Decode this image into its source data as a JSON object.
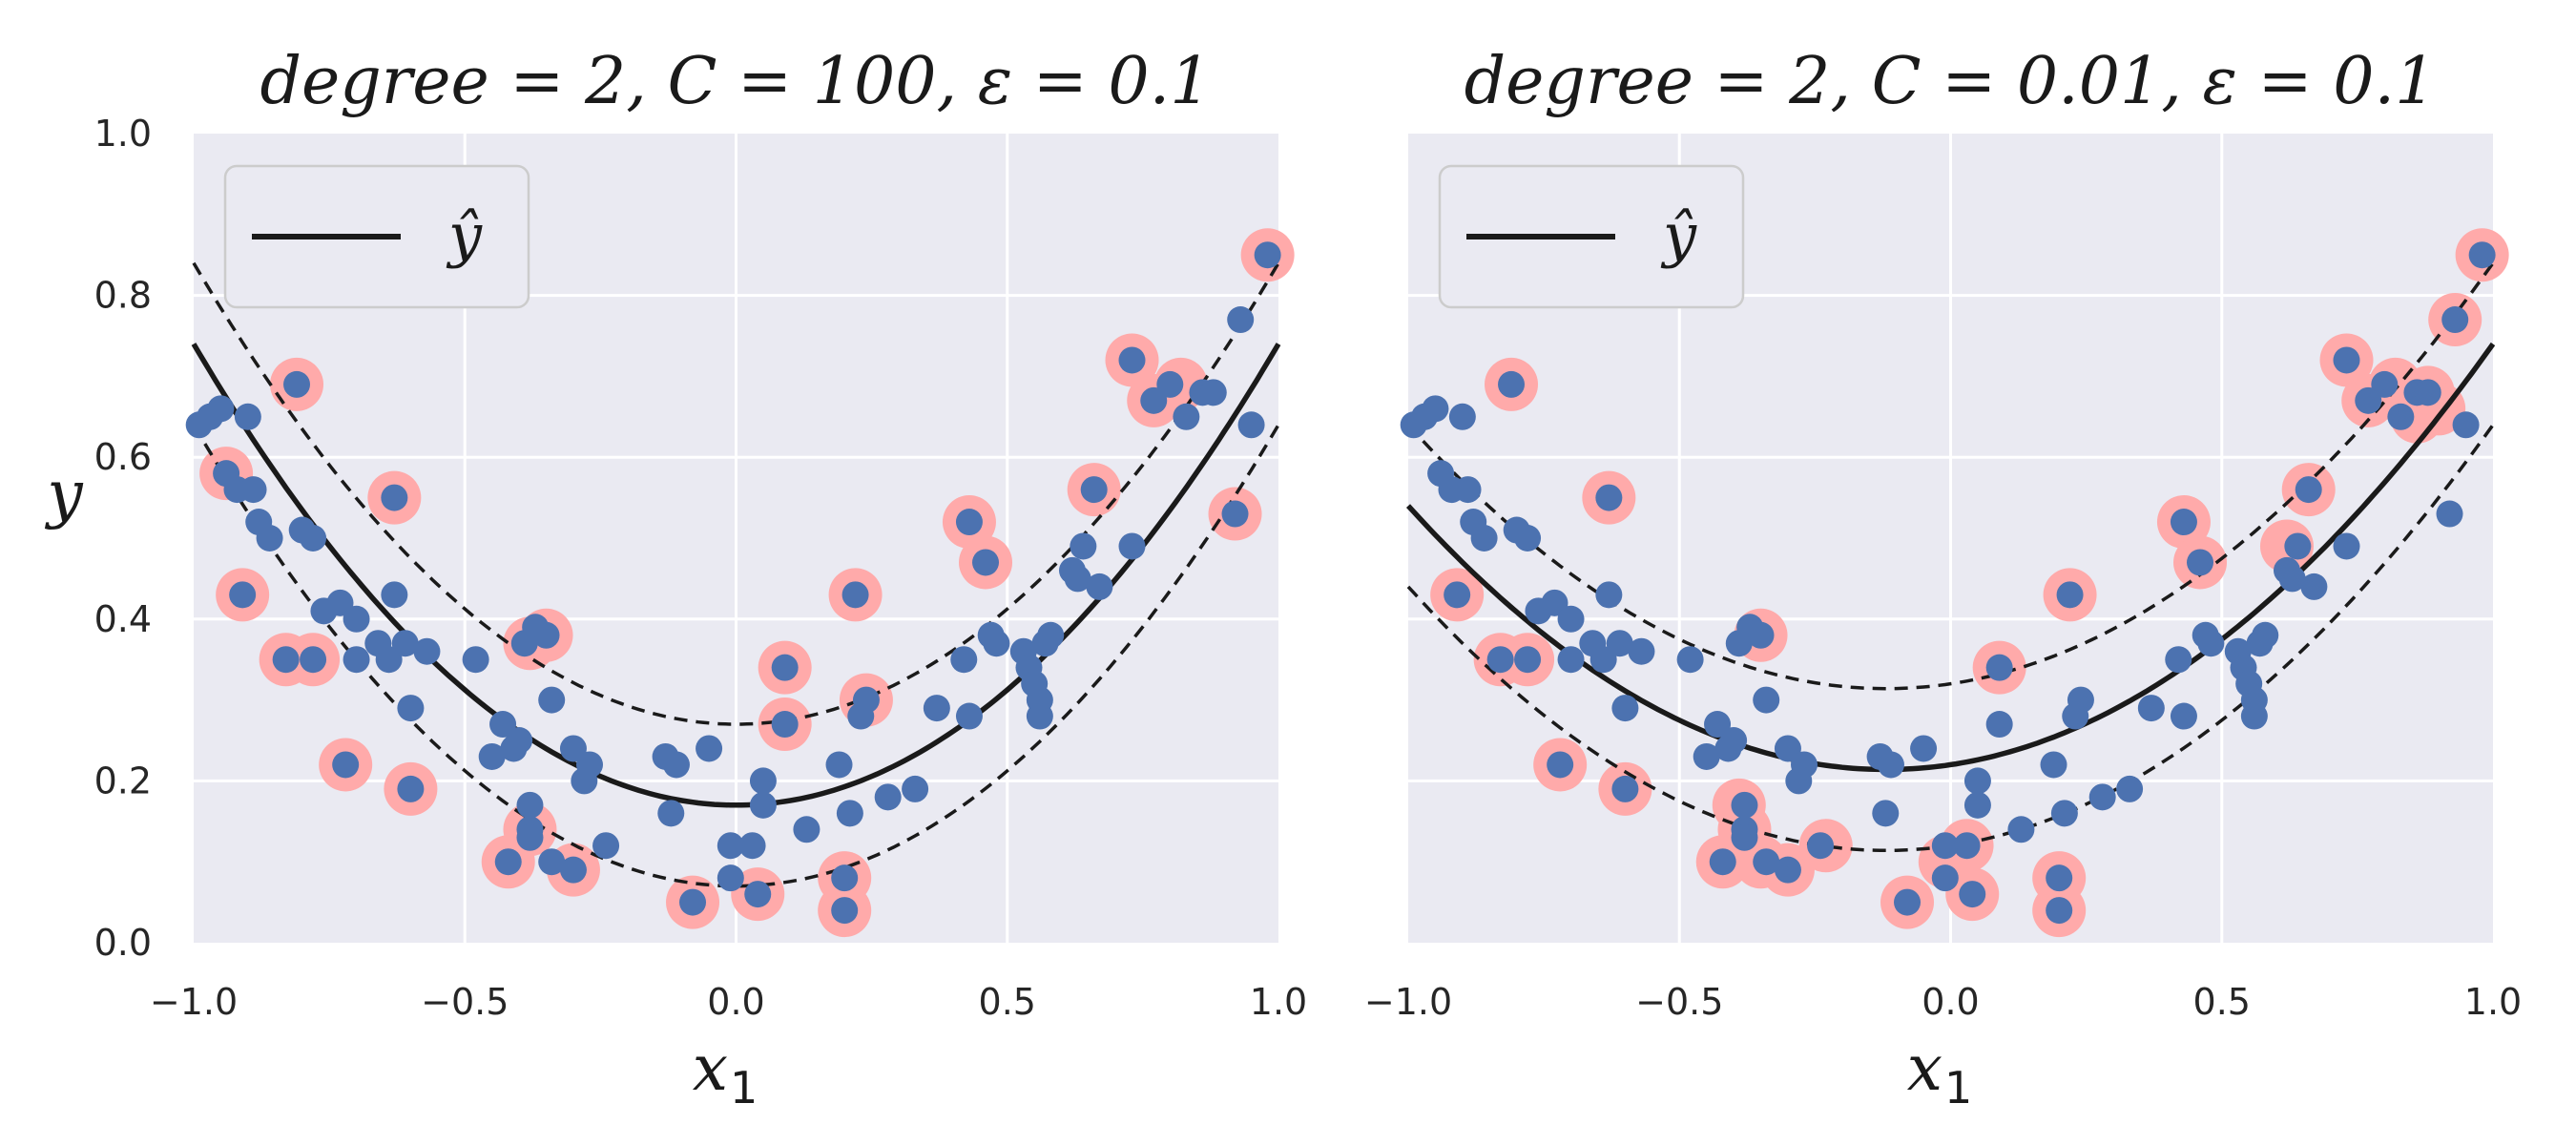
{
  "chart_data": [
    {
      "type": "scatter",
      "title": "degree = 2, C = 100, ε = 0.1",
      "xlabel": "x",
      "xlabel_subscript": "1",
      "ylabel": "y",
      "xlim": [
        -1.0,
        1.0
      ],
      "ylim": [
        0.0,
        1.0
      ],
      "xticks": [
        "−1.0",
        "−0.5",
        "0.0",
        "0.5",
        "1.0"
      ],
      "yticks": [
        "0.0",
        "0.2",
        "0.4",
        "0.6",
        "0.8",
        "1.0"
      ],
      "grid": true,
      "legend": {
        "placement": "top-left",
        "label": "ŷ"
      },
      "model": {
        "a": 0.57,
        "b": 0.0,
        "c": 0.17,
        "epsilon": 0.1
      },
      "colors": {
        "points": "#4c72b0",
        "support_vectors": "#ffaaaa",
        "line": "#1a1a1a",
        "background": "#eaeaf2",
        "grid": "#ffffff"
      },
      "points": [
        [
          -0.99,
          0.64
        ],
        [
          -0.97,
          0.65
        ],
        [
          -0.95,
          0.66
        ],
        [
          -0.94,
          0.58
        ],
        [
          -0.92,
          0.56
        ],
        [
          -0.9,
          0.65
        ],
        [
          -0.89,
          0.56
        ],
        [
          -0.88,
          0.52
        ],
        [
          -0.86,
          0.5
        ],
        [
          -0.91,
          0.43
        ],
        [
          -0.81,
          0.69
        ],
        [
          -0.83,
          0.35
        ],
        [
          -0.78,
          0.35
        ],
        [
          -0.8,
          0.51
        ],
        [
          -0.78,
          0.5
        ],
        [
          -0.76,
          0.41
        ],
        [
          -0.73,
          0.42
        ],
        [
          -0.7,
          0.4
        ],
        [
          -0.7,
          0.35
        ],
        [
          -0.72,
          0.22
        ],
        [
          -0.66,
          0.37
        ],
        [
          -0.64,
          0.35
        ],
        [
          -0.63,
          0.43
        ],
        [
          -0.63,
          0.55
        ],
        [
          -0.61,
          0.37
        ],
        [
          -0.6,
          0.29
        ],
        [
          -0.6,
          0.19
        ],
        [
          -0.57,
          0.36
        ],
        [
          -0.48,
          0.35
        ],
        [
          -0.45,
          0.23
        ],
        [
          -0.43,
          0.27
        ],
        [
          -0.41,
          0.24
        ],
        [
          -0.4,
          0.25
        ],
        [
          -0.39,
          0.37
        ],
        [
          -0.37,
          0.39
        ],
        [
          -0.35,
          0.38
        ],
        [
          -0.34,
          0.3
        ],
        [
          -0.38,
          0.17
        ],
        [
          -0.38,
          0.14
        ],
        [
          -0.42,
          0.1
        ],
        [
          -0.38,
          0.13
        ],
        [
          -0.34,
          0.1
        ],
        [
          -0.3,
          0.09
        ],
        [
          -0.3,
          0.24
        ],
        [
          -0.28,
          0.2
        ],
        [
          -0.27,
          0.22
        ],
        [
          -0.24,
          0.12
        ],
        [
          -0.13,
          0.23
        ],
        [
          -0.12,
          0.16
        ],
        [
          -0.11,
          0.22
        ],
        [
          -0.08,
          0.05
        ],
        [
          -0.05,
          0.24
        ],
        [
          -0.01,
          0.12
        ],
        [
          -0.01,
          0.08
        ],
        [
          0.03,
          0.12
        ],
        [
          0.05,
          0.2
        ],
        [
          0.05,
          0.17
        ],
        [
          0.04,
          0.06
        ],
        [
          0.09,
          0.34
        ],
        [
          0.09,
          0.27
        ],
        [
          0.13,
          0.14
        ],
        [
          0.19,
          0.22
        ],
        [
          0.2,
          0.08
        ],
        [
          0.2,
          0.04
        ],
        [
          0.21,
          0.16
        ],
        [
          0.22,
          0.43
        ],
        [
          0.23,
          0.28
        ],
        [
          0.24,
          0.3
        ],
        [
          0.28,
          0.18
        ],
        [
          0.33,
          0.19
        ],
        [
          0.37,
          0.29
        ],
        [
          0.42,
          0.35
        ],
        [
          0.43,
          0.52
        ],
        [
          0.43,
          0.28
        ],
        [
          0.46,
          0.47
        ],
        [
          0.47,
          0.38
        ],
        [
          0.48,
          0.37
        ],
        [
          0.53,
          0.36
        ],
        [
          0.54,
          0.34
        ],
        [
          0.55,
          0.32
        ],
        [
          0.56,
          0.3
        ],
        [
          0.56,
          0.28
        ],
        [
          0.57,
          0.37
        ],
        [
          0.58,
          0.38
        ],
        [
          0.62,
          0.46
        ],
        [
          0.63,
          0.45
        ],
        [
          0.64,
          0.49
        ],
        [
          0.66,
          0.56
        ],
        [
          0.67,
          0.44
        ],
        [
          0.73,
          0.49
        ],
        [
          0.73,
          0.72
        ],
        [
          0.77,
          0.67
        ],
        [
          0.8,
          0.69
        ],
        [
          0.83,
          0.65
        ],
        [
          0.86,
          0.68
        ],
        [
          0.88,
          0.68
        ],
        [
          0.92,
          0.53
        ],
        [
          0.93,
          0.77
        ],
        [
          0.95,
          0.64
        ],
        [
          0.98,
          0.85
        ]
      ],
      "support_vectors": [
        [
          -0.94,
          0.58
        ],
        [
          -0.91,
          0.43
        ],
        [
          -0.81,
          0.69
        ],
        [
          -0.83,
          0.35
        ],
        [
          -0.78,
          0.35
        ],
        [
          -0.72,
          0.22
        ],
        [
          -0.63,
          0.55
        ],
        [
          -0.6,
          0.19
        ],
        [
          -0.38,
          0.37
        ],
        [
          -0.35,
          0.38
        ],
        [
          -0.38,
          0.14
        ],
        [
          -0.42,
          0.1
        ],
        [
          -0.3,
          0.09
        ],
        [
          -0.08,
          0.05
        ],
        [
          0.04,
          0.06
        ],
        [
          0.09,
          0.34
        ],
        [
          0.09,
          0.27
        ],
        [
          0.2,
          0.08
        ],
        [
          0.2,
          0.04
        ],
        [
          0.22,
          0.43
        ],
        [
          0.24,
          0.3
        ],
        [
          0.43,
          0.52
        ],
        [
          0.46,
          0.47
        ],
        [
          0.66,
          0.56
        ],
        [
          0.73,
          0.72
        ],
        [
          0.77,
          0.67
        ],
        [
          0.82,
          0.69
        ],
        [
          0.92,
          0.53
        ],
        [
          0.98,
          0.85
        ]
      ]
    },
    {
      "type": "scatter",
      "title": "degree = 2, C = 0.01, ε = 0.1",
      "xlabel": "x",
      "xlabel_subscript": "1",
      "xlim": [
        -1.0,
        1.0
      ],
      "ylim": [
        0.0,
        1.0
      ],
      "xticks": [
        "−1.0",
        "−0.5",
        "0.0",
        "0.5",
        "1.0"
      ],
      "grid": true,
      "legend": {
        "placement": "top-left",
        "label": "ŷ"
      },
      "model": {
        "a": 0.42,
        "b": 0.1,
        "c": 0.22,
        "epsilon": 0.1
      },
      "colors": {
        "points": "#4c72b0",
        "support_vectors": "#ffaaaa",
        "line": "#1a1a1a",
        "background": "#eaeaf2",
        "grid": "#ffffff"
      },
      "points": [
        [
          -0.99,
          0.64
        ],
        [
          -0.97,
          0.65
        ],
        [
          -0.95,
          0.66
        ],
        [
          -0.94,
          0.58
        ],
        [
          -0.92,
          0.56
        ],
        [
          -0.9,
          0.65
        ],
        [
          -0.89,
          0.56
        ],
        [
          -0.88,
          0.52
        ],
        [
          -0.86,
          0.5
        ],
        [
          -0.91,
          0.43
        ],
        [
          -0.81,
          0.69
        ],
        [
          -0.83,
          0.35
        ],
        [
          -0.78,
          0.35
        ],
        [
          -0.8,
          0.51
        ],
        [
          -0.78,
          0.5
        ],
        [
          -0.76,
          0.41
        ],
        [
          -0.73,
          0.42
        ],
        [
          -0.7,
          0.4
        ],
        [
          -0.7,
          0.35
        ],
        [
          -0.72,
          0.22
        ],
        [
          -0.66,
          0.37
        ],
        [
          -0.64,
          0.35
        ],
        [
          -0.63,
          0.43
        ],
        [
          -0.63,
          0.55
        ],
        [
          -0.61,
          0.37
        ],
        [
          -0.6,
          0.29
        ],
        [
          -0.6,
          0.19
        ],
        [
          -0.57,
          0.36
        ],
        [
          -0.48,
          0.35
        ],
        [
          -0.45,
          0.23
        ],
        [
          -0.43,
          0.27
        ],
        [
          -0.41,
          0.24
        ],
        [
          -0.4,
          0.25
        ],
        [
          -0.39,
          0.37
        ],
        [
          -0.37,
          0.39
        ],
        [
          -0.35,
          0.38
        ],
        [
          -0.34,
          0.3
        ],
        [
          -0.38,
          0.17
        ],
        [
          -0.38,
          0.14
        ],
        [
          -0.42,
          0.1
        ],
        [
          -0.38,
          0.13
        ],
        [
          -0.34,
          0.1
        ],
        [
          -0.3,
          0.09
        ],
        [
          -0.3,
          0.24
        ],
        [
          -0.28,
          0.2
        ],
        [
          -0.27,
          0.22
        ],
        [
          -0.24,
          0.12
        ],
        [
          -0.13,
          0.23
        ],
        [
          -0.12,
          0.16
        ],
        [
          -0.11,
          0.22
        ],
        [
          -0.08,
          0.05
        ],
        [
          -0.05,
          0.24
        ],
        [
          -0.01,
          0.12
        ],
        [
          -0.01,
          0.08
        ],
        [
          0.03,
          0.12
        ],
        [
          0.05,
          0.2
        ],
        [
          0.05,
          0.17
        ],
        [
          0.04,
          0.06
        ],
        [
          0.09,
          0.34
        ],
        [
          0.09,
          0.27
        ],
        [
          0.13,
          0.14
        ],
        [
          0.19,
          0.22
        ],
        [
          0.2,
          0.08
        ],
        [
          0.2,
          0.04
        ],
        [
          0.21,
          0.16
        ],
        [
          0.22,
          0.43
        ],
        [
          0.23,
          0.28
        ],
        [
          0.24,
          0.3
        ],
        [
          0.28,
          0.18
        ],
        [
          0.33,
          0.19
        ],
        [
          0.37,
          0.29
        ],
        [
          0.42,
          0.35
        ],
        [
          0.43,
          0.52
        ],
        [
          0.43,
          0.28
        ],
        [
          0.46,
          0.47
        ],
        [
          0.47,
          0.38
        ],
        [
          0.48,
          0.37
        ],
        [
          0.53,
          0.36
        ],
        [
          0.54,
          0.34
        ],
        [
          0.55,
          0.32
        ],
        [
          0.56,
          0.3
        ],
        [
          0.56,
          0.28
        ],
        [
          0.57,
          0.37
        ],
        [
          0.58,
          0.38
        ],
        [
          0.62,
          0.46
        ],
        [
          0.63,
          0.45
        ],
        [
          0.64,
          0.49
        ],
        [
          0.66,
          0.56
        ],
        [
          0.67,
          0.44
        ],
        [
          0.73,
          0.49
        ],
        [
          0.73,
          0.72
        ],
        [
          0.77,
          0.67
        ],
        [
          0.8,
          0.69
        ],
        [
          0.83,
          0.65
        ],
        [
          0.86,
          0.68
        ],
        [
          0.88,
          0.68
        ],
        [
          0.92,
          0.53
        ],
        [
          0.93,
          0.77
        ],
        [
          0.95,
          0.64
        ],
        [
          0.98,
          0.85
        ]
      ],
      "support_vectors": [
        [
          -0.91,
          0.43
        ],
        [
          -0.81,
          0.69
        ],
        [
          -0.83,
          0.35
        ],
        [
          -0.78,
          0.35
        ],
        [
          -0.72,
          0.22
        ],
        [
          -0.63,
          0.55
        ],
        [
          -0.6,
          0.19
        ],
        [
          -0.39,
          0.17
        ],
        [
          -0.38,
          0.14
        ],
        [
          -0.42,
          0.1
        ],
        [
          -0.35,
          0.1
        ],
        [
          -0.3,
          0.09
        ],
        [
          -0.35,
          0.38
        ],
        [
          -0.23,
          0.12
        ],
        [
          -0.08,
          0.05
        ],
        [
          -0.01,
          0.1
        ],
        [
          0.03,
          0.12
        ],
        [
          0.04,
          0.06
        ],
        [
          0.09,
          0.34
        ],
        [
          0.2,
          0.08
        ],
        [
          0.2,
          0.04
        ],
        [
          0.22,
          0.43
        ],
        [
          0.43,
          0.52
        ],
        [
          0.46,
          0.47
        ],
        [
          0.62,
          0.49
        ],
        [
          0.66,
          0.56
        ],
        [
          0.73,
          0.72
        ],
        [
          0.77,
          0.67
        ],
        [
          0.82,
          0.69
        ],
        [
          0.86,
          0.65
        ],
        [
          0.88,
          0.68
        ],
        [
          0.9,
          0.66
        ],
        [
          0.93,
          0.77
        ],
        [
          0.98,
          0.85
        ]
      ]
    }
  ]
}
